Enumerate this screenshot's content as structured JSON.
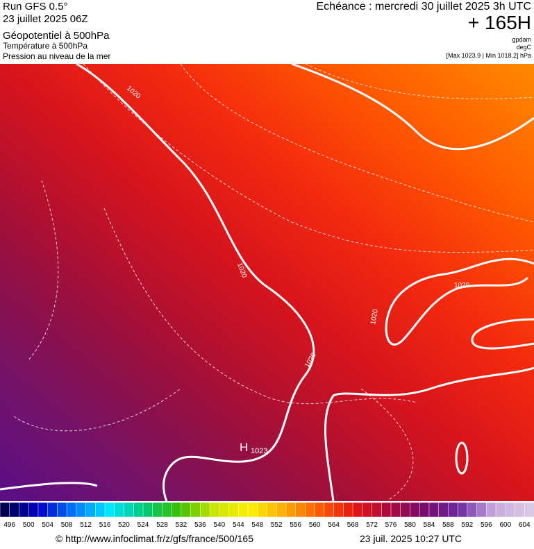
{
  "header": {
    "run": "Run GFS 0.5°",
    "date": "23 juillet 2025 06Z",
    "field1": "Géopotentiel à 500hPa",
    "field2": "Température à 500hPa",
    "field3": "Pression au niveau de la mer"
  },
  "header_right": {
    "forecast": "Echéance : mercredi 30 juillet 2025 3h UTC",
    "step": "+ 165H",
    "unit1": "gpdam",
    "unit2": "degC",
    "extremes": "[Max 1023.9 | Min 1018.2] hPa"
  },
  "map": {
    "isobar_labels": [
      "1020",
      "1020",
      "1020",
      "1020",
      "1020"
    ],
    "high_label": "H",
    "high_value": "1023"
  },
  "colorbar": {
    "labels": [
      496,
      500,
      504,
      508,
      512,
      516,
      520,
      524,
      528,
      532,
      536,
      540,
      544,
      548,
      552,
      556,
      560,
      564,
      568,
      572,
      576,
      580,
      584,
      588,
      592,
      596,
      600,
      604
    ]
  },
  "footer": {
    "url": "© http://www.infoclimat.fr/z/gfs/france/500/165",
    "timestamp": "23 juil. 2025 10:27 UTC"
  }
}
